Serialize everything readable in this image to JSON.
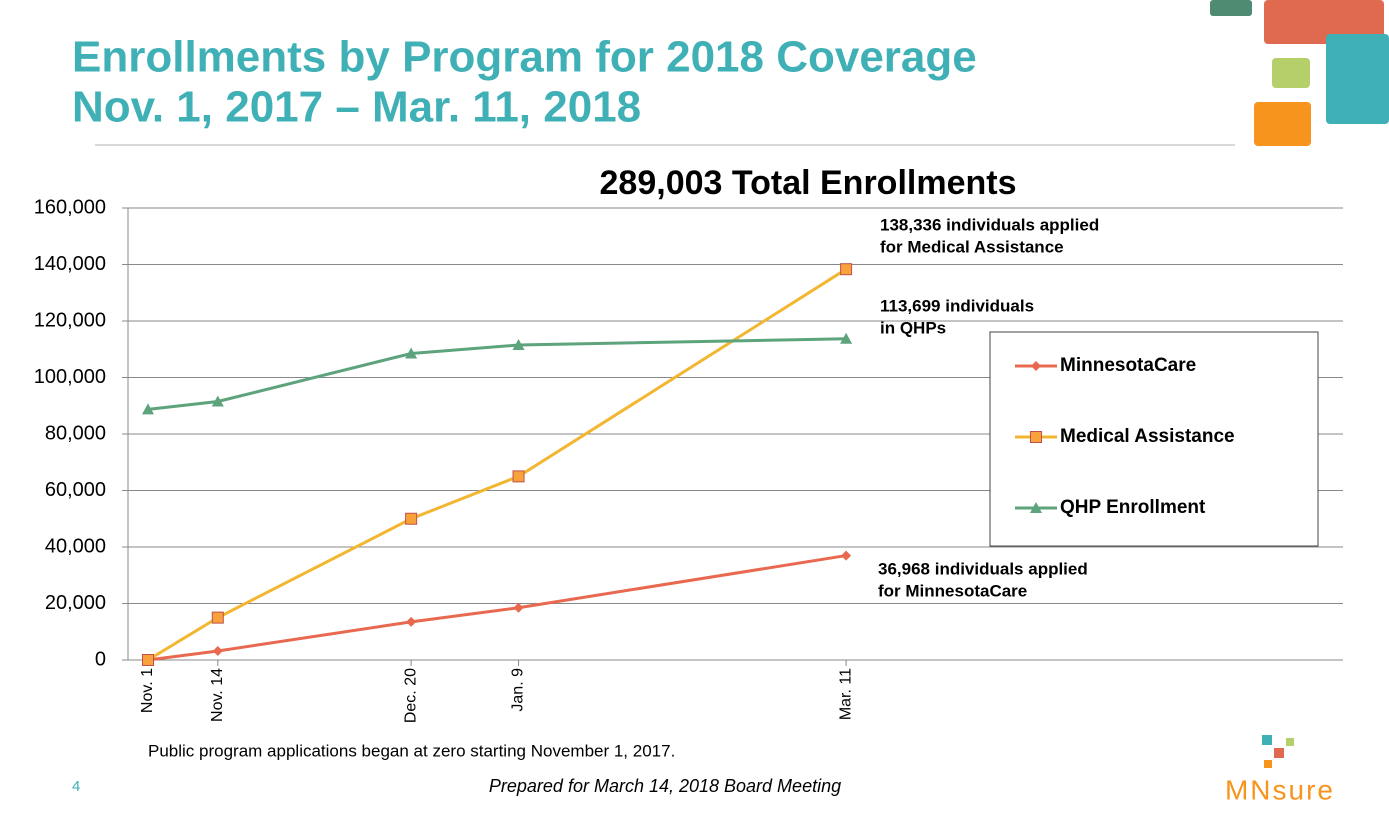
{
  "title": [
    "Enrollments by Program for 2018 Coverage",
    "Nov. 1, 2017 – Mar. 11, 2018"
  ],
  "chart_data": {
    "type": "line",
    "title": "289,003 Total Enrollments",
    "x": [
      "Nov. 1",
      "Nov. 14",
      "Dec. 20",
      "Jan. 9",
      "Mar. 11"
    ],
    "series": [
      {
        "name": "MinnesotaCare",
        "color": "#e8694f",
        "marker": "diamond",
        "values": [
          0,
          3200,
          13500,
          18500,
          36968
        ]
      },
      {
        "name": "Medical Assistance",
        "color": "#f2b631",
        "marker": "square",
        "values": [
          0,
          15000,
          50000,
          65000,
          138336
        ]
      },
      {
        "name": "QHP Enrollment",
        "color": "#5da37c",
        "marker": "triangle",
        "values": [
          88700,
          91500,
          108500,
          111500,
          113699
        ]
      }
    ],
    "ylim": [
      0,
      160000
    ],
    "yticks": [
      0,
      {
        "value": 20000,
        "label": "20,000"
      },
      {
        "value": 40000,
        "label": "40,000"
      },
      {
        "value": 60000,
        "label": "60,000"
      },
      {
        "value": 80000,
        "label": "80,000"
      },
      {
        "value": 100000,
        "label": "100,000"
      },
      {
        "value": 120000,
        "label": "120,000"
      },
      {
        "value": 140000,
        "label": "140,000"
      },
      {
        "value": 160000,
        "label": "160,000"
      }
    ],
    "grid": true,
    "legend": "right",
    "annotations": [
      [
        "138,336 individuals applied",
        "for Medical Assistance"
      ],
      [
        "113,699 individuals",
        "in QHPs"
      ],
      [
        "36,968 individuals applied",
        "for MinnesotaCare"
      ]
    ],
    "note": "Public program applications began at zero starting November 1, 2017."
  },
  "footer": {
    "page": "4",
    "text": "Prepared for March 14, 2018 Board Meeting",
    "logo": "MNsure"
  }
}
